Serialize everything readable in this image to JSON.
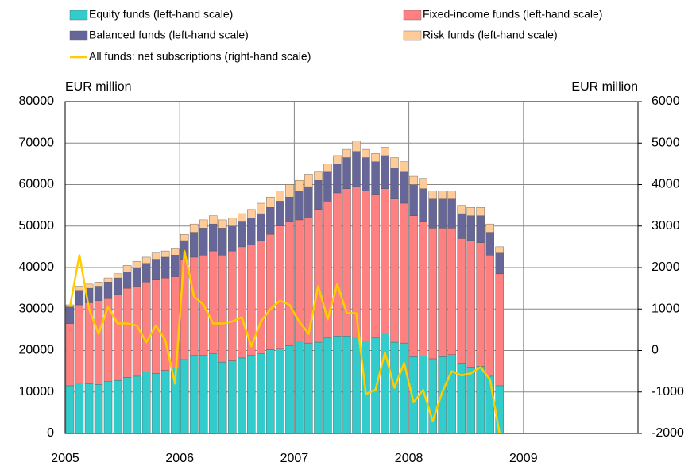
{
  "chart_data": {
    "type": "bar",
    "stacked": true,
    "ylabel": "EUR million",
    "y2label": "EUR million",
    "x": [
      2005,
      2005.083,
      2005.167,
      2005.25,
      2005.333,
      2005.417,
      2005.5,
      2005.583,
      2005.667,
      2005.75,
      2005.833,
      2005.917,
      2006,
      2006.083,
      2006.167,
      2006.25,
      2006.333,
      2006.417,
      2006.5,
      2006.583,
      2006.667,
      2006.75,
      2006.833,
      2006.917,
      2007,
      2007.083,
      2007.167,
      2007.25,
      2007.333,
      2007.417,
      2007.5,
      2007.583,
      2007.667,
      2007.75,
      2007.833,
      2007.917,
      2008,
      2008.083,
      2008.167,
      2008.25,
      2008.333,
      2008.417,
      2008.5,
      2008.583,
      2008.667,
      2008.75
    ],
    "xlim": [
      2005,
      2010
    ],
    "xticks": [
      2005,
      2006,
      2007,
      2008,
      2009
    ],
    "ylim": [
      0,
      80000
    ],
    "yticks": [
      0,
      10000,
      20000,
      30000,
      40000,
      50000,
      60000,
      70000,
      80000
    ],
    "y2lim": [
      -2000,
      6000
    ],
    "y2ticks": [
      -2000,
      -1000,
      0,
      1000,
      2000,
      3000,
      4000,
      5000,
      6000
    ],
    "grid": true,
    "series": [
      {
        "name": "Equity funds (left-hand scale)",
        "color": "#33cccc",
        "values": [
          11500,
          12200,
          12000,
          11800,
          12500,
          12800,
          13500,
          13800,
          14800,
          14500,
          15200,
          15800,
          17800,
          18800,
          18800,
          19200,
          17200,
          17500,
          18200,
          18800,
          19200,
          20200,
          20500,
          21200,
          22300,
          21800,
          22000,
          23000,
          23500,
          23500,
          23300,
          22300,
          23000,
          24200,
          22000,
          21800,
          18500,
          18700,
          18000,
          18500,
          19000,
          17000,
          16000,
          16200,
          13800,
          11500
        ]
      },
      {
        "name": "Fixed-income funds (left-hand scale)",
        "color": "#ff8080",
        "values": [
          15000,
          18800,
          19500,
          20200,
          20000,
          20700,
          21500,
          21700,
          21700,
          22500,
          22300,
          22000,
          24200,
          23700,
          24200,
          24800,
          25800,
          26500,
          26800,
          26700,
          27300,
          27800,
          29500,
          29800,
          29200,
          30200,
          32000,
          33000,
          34500,
          35500,
          36200,
          36200,
          34500,
          34800,
          34500,
          33700,
          34000,
          32300,
          31500,
          31000,
          30500,
          30000,
          30500,
          29800,
          29200,
          27000
        ]
      },
      {
        "name": "Balanced funds (left-hand scale)",
        "color": "#666699",
        "values": [
          4000,
          3500,
          3500,
          3500,
          4000,
          4000,
          4000,
          4500,
          4500,
          5000,
          5000,
          5200,
          4500,
          6000,
          6500,
          6500,
          6500,
          6000,
          6000,
          6500,
          6500,
          6500,
          6000,
          6000,
          7000,
          7500,
          7000,
          7000,
          7000,
          7500,
          8500,
          8000,
          8000,
          8000,
          7500,
          7500,
          7500,
          8000,
          7000,
          7000,
          7000,
          6000,
          6000,
          6500,
          5500,
          5000
        ]
      },
      {
        "name": "Risk funds (left-hand scale)",
        "color": "#ffcc99",
        "values": [
          500,
          1000,
          1000,
          1000,
          1000,
          1000,
          1500,
          1500,
          1500,
          1500,
          1500,
          1500,
          1500,
          2000,
          2000,
          2000,
          2000,
          2000,
          2000,
          2000,
          2500,
          2500,
          2500,
          3000,
          2500,
          3000,
          2000,
          2000,
          2000,
          2000,
          2500,
          2000,
          2000,
          2000,
          2500,
          2500,
          2000,
          2500,
          2000,
          2000,
          2000,
          2000,
          2000,
          2000,
          2000,
          1500
        ]
      },
      {
        "name": "All funds: net subscriptions (right-hand scale)",
        "color": "#ffcc00",
        "type": "line",
        "axis": "y2",
        "values": [
          1050,
          2300,
          1000,
          400,
          1050,
          650,
          650,
          600,
          200,
          600,
          250,
          -800,
          2400,
          1300,
          1100,
          650,
          650,
          700,
          800,
          100,
          700,
          1000,
          1200,
          1100,
          700,
          400,
          1550,
          750,
          1600,
          900,
          900,
          -1050,
          -950,
          -50,
          -900,
          -300,
          -1250,
          -950,
          -1700,
          -1000,
          -500,
          -600,
          -550,
          -400,
          -700,
          -2000
        ]
      }
    ]
  }
}
